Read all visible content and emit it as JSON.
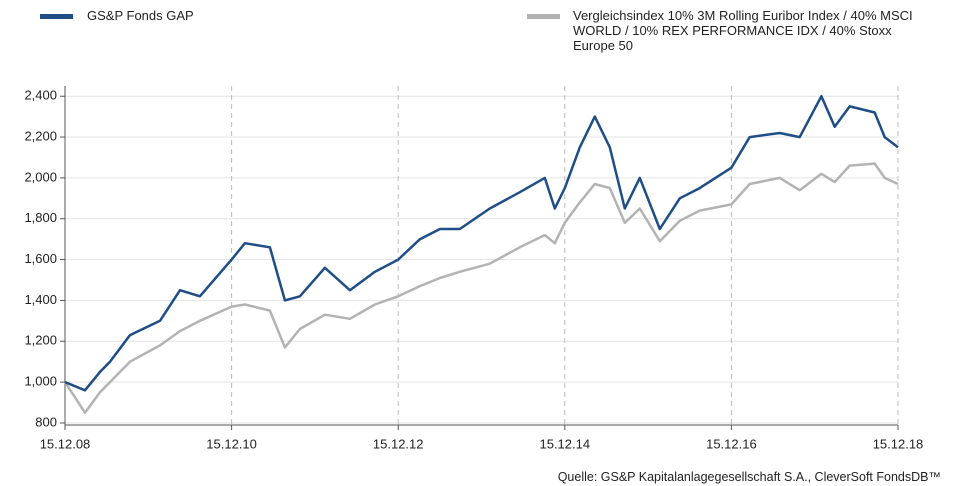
{
  "chart_data": {
    "type": "line",
    "source": "Quelle: GS&P  Kapitalanlagegesellschaft S.A., CleverSoft FondsDB™",
    "x": [
      2008.96,
      2009.2,
      2009.38,
      2009.5,
      2009.74,
      2010.1,
      2010.34,
      2010.58,
      2010.96,
      2011.12,
      2011.42,
      2011.6,
      2011.78,
      2012.08,
      2012.38,
      2012.68,
      2012.96,
      2013.22,
      2013.46,
      2013.7,
      2014.06,
      2014.42,
      2014.72,
      2014.84,
      2014.96,
      2015.14,
      2015.32,
      2015.5,
      2015.68,
      2015.86,
      2016.1,
      2016.34,
      2016.58,
      2016.96,
      2017.18,
      2017.54,
      2017.78,
      2018.04,
      2018.2,
      2018.38,
      2018.68,
      2018.8,
      2018.96
    ],
    "series": [
      {
        "name": "GS&P Fonds GAP",
        "color": "#1f4e86",
        "values": [
          1000,
          960,
          1050,
          1100,
          1230,
          1300,
          1450,
          1420,
          1600,
          1680,
          1660,
          1400,
          1420,
          1560,
          1450,
          1540,
          1600,
          1700,
          1750,
          1750,
          1850,
          1930,
          2000,
          1850,
          1950,
          2150,
          2300,
          2150,
          1850,
          2000,
          1750,
          1900,
          1950,
          2050,
          2200,
          2220,
          2200,
          2400,
          2250,
          2350,
          2320,
          2200,
          2150
        ]
      },
      {
        "name": "Vergleichsindex 10% 3M Rolling Euribor Index / 40% MSCI WORLD / 10% REX PERFORMANCE IDX / 40% Stoxx Europe 50",
        "color": "#b3b3b3",
        "values": [
          1000,
          850,
          950,
          1000,
          1100,
          1180,
          1250,
          1300,
          1370,
          1380,
          1350,
          1170,
          1260,
          1330,
          1310,
          1380,
          1420,
          1470,
          1510,
          1540,
          1580,
          1660,
          1720,
          1680,
          1780,
          1880,
          1970,
          1950,
          1780,
          1850,
          1690,
          1790,
          1840,
          1870,
          1970,
          2000,
          1940,
          2020,
          1980,
          2060,
          2070,
          2000,
          1970
        ]
      }
    ],
    "xlim": [
      2008.96,
      2018.96
    ],
    "xticks": [
      {
        "value": 2008.96,
        "label": "15.12.08"
      },
      {
        "value": 2010.96,
        "label": "15.12.10"
      },
      {
        "value": 2012.96,
        "label": "15.12.12"
      },
      {
        "value": 2014.96,
        "label": "15.12.14"
      },
      {
        "value": 2016.96,
        "label": "15.12.16"
      },
      {
        "value": 2018.96,
        "label": "15.12.18"
      }
    ],
    "ylim": [
      790,
      2450
    ],
    "yticks": [
      800,
      {
        "value": 1000,
        "label": "1,000"
      },
      {
        "value": 1200,
        "label": "1,200"
      },
      {
        "value": 1400,
        "label": "1,400"
      },
      {
        "value": 1600,
        "label": "1,600"
      },
      {
        "value": 1800,
        "label": "1,800"
      },
      {
        "value": 2000,
        "label": "2,000"
      },
      {
        "value": 2200,
        "label": "2,200"
      },
      {
        "value": 2400,
        "label": "2,400"
      }
    ],
    "grid": true
  }
}
